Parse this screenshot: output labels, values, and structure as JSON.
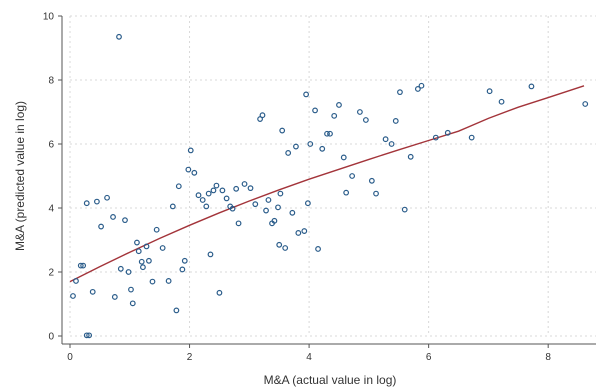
{
  "chart_data": {
    "type": "scatter",
    "title": "",
    "xlabel": "M&A (actual value in log)",
    "ylabel": "M&A (predicted value in log)",
    "xlim": [
      0,
      8.8
    ],
    "ylim": [
      0,
      10
    ],
    "x_ticks": [
      0,
      2,
      4,
      6,
      8
    ],
    "y_ticks": [
      0,
      2,
      4,
      6,
      8,
      10
    ],
    "grid": true,
    "legend": "none",
    "colors": {
      "points": "#2a5c8a",
      "fit": "#a3343a",
      "grid": "#d8d8d8",
      "axis": "#555555"
    },
    "series": [
      {
        "kind": "points",
        "x": [
          0.05,
          0.1,
          0.18,
          0.28,
          0.32,
          0.38,
          0.45,
          0.52,
          0.62,
          0.72,
          0.75,
          0.82,
          0.85,
          0.92,
          0.98,
          1.02,
          1.05,
          1.12,
          1.15,
          1.2,
          1.22,
          1.28,
          1.32,
          1.38,
          1.45,
          1.55,
          1.65,
          1.72,
          1.78,
          1.82,
          1.88,
          1.92,
          1.98,
          2.02,
          2.08,
          2.15,
          2.22,
          2.28,
          2.32,
          2.35,
          2.4,
          2.45,
          2.5,
          2.55,
          2.62,
          2.68,
          2.72,
          2.78,
          2.82,
          2.92,
          3.02,
          3.1,
          3.18,
          3.22,
          3.28,
          3.32,
          3.38,
          3.42,
          3.48,
          3.5,
          3.52,
          3.55,
          3.6,
          3.65,
          3.72,
          3.78,
          3.82,
          3.92,
          3.95,
          3.98,
          4.02,
          4.1,
          4.15,
          4.22,
          4.3,
          4.35,
          4.42,
          4.5,
          4.58,
          4.62,
          4.72,
          4.85,
          4.95,
          5.05,
          5.12,
          5.28,
          5.38,
          5.45,
          5.52,
          5.6,
          5.7,
          5.82,
          5.88,
          6.12,
          6.32,
          6.72,
          7.02,
          7.22,
          7.72,
          8.62,
          0.28,
          0.22
        ],
        "y": [
          1.25,
          1.72,
          2.2,
          4.15,
          0.02,
          1.38,
          4.2,
          3.42,
          4.32,
          3.72,
          1.22,
          9.35,
          2.1,
          3.62,
          2.0,
          1.45,
          1.02,
          2.92,
          2.65,
          2.32,
          2.15,
          2.8,
          2.35,
          1.7,
          3.32,
          2.75,
          1.72,
          4.05,
          0.8,
          4.68,
          2.08,
          2.35,
          5.2,
          5.8,
          5.1,
          4.4,
          4.25,
          4.05,
          4.45,
          2.55,
          4.55,
          4.7,
          1.35,
          4.55,
          4.3,
          4.05,
          3.98,
          4.6,
          3.52,
          4.75,
          4.62,
          4.12,
          6.78,
          6.9,
          3.92,
          4.25,
          3.52,
          3.6,
          4.02,
          2.85,
          4.45,
          6.42,
          2.75,
          5.72,
          3.85,
          5.92,
          3.22,
          3.28,
          7.55,
          4.15,
          6.0,
          7.05,
          2.72,
          5.85,
          6.32,
          6.32,
          6.88,
          7.22,
          5.58,
          4.48,
          5.0,
          7.0,
          6.75,
          4.85,
          4.45,
          6.15,
          6.0,
          6.72,
          7.62,
          3.95,
          5.6,
          7.72,
          7.82,
          6.2,
          6.35,
          6.2,
          7.65,
          7.32,
          7.8,
          7.25,
          0.02,
          2.2
        ]
      },
      {
        "kind": "fit",
        "x": [
          0,
          0.5,
          1,
          1.5,
          2,
          2.5,
          3,
          3.5,
          4,
          4.5,
          5,
          5.5,
          6,
          6.5,
          7,
          7.5,
          8,
          8.6
        ],
        "y": [
          1.7,
          2.17,
          2.62,
          3.05,
          3.46,
          3.85,
          4.22,
          4.57,
          4.9,
          5.21,
          5.52,
          5.82,
          6.11,
          6.4,
          6.8,
          7.15,
          7.45,
          7.82
        ]
      }
    ]
  }
}
